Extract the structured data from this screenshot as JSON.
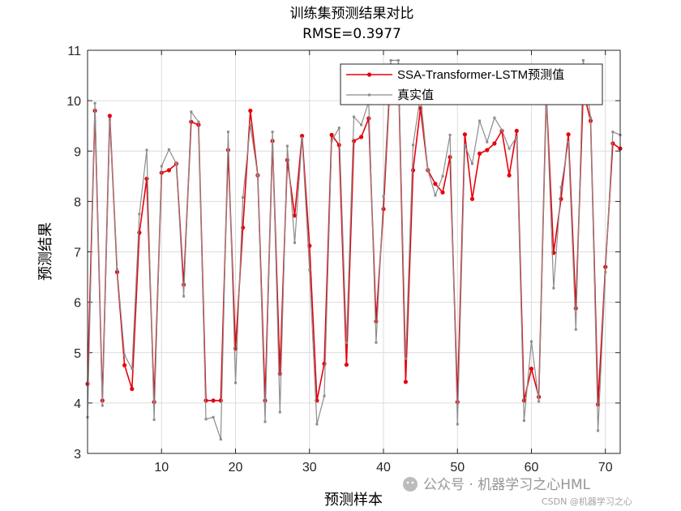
{
  "chart_data": {
    "type": "line",
    "title": "训练集预测结果对比",
    "subtitle": "RMSE=0.3977",
    "xlabel": "预测样本",
    "ylabel": "预测结果",
    "xlim": [
      0,
      72
    ],
    "ylim": [
      3,
      11
    ],
    "xticks": [
      10,
      20,
      30,
      40,
      50,
      60,
      70
    ],
    "yticks": [
      3,
      4,
      5,
      6,
      7,
      8,
      9,
      10,
      11
    ],
    "grid": true,
    "legend_position": "top-right",
    "x": [
      0,
      1,
      2,
      3,
      4,
      5,
      6,
      7,
      8,
      9,
      10,
      11,
      12,
      13,
      14,
      15,
      16,
      17,
      18,
      19,
      20,
      21,
      22,
      23,
      24,
      25,
      26,
      27,
      28,
      29,
      30,
      31,
      32,
      33,
      34,
      35,
      36,
      37,
      38,
      39,
      40,
      41,
      42,
      43,
      44,
      45,
      46,
      47,
      48,
      49,
      50,
      51,
      52,
      53,
      54,
      55,
      56,
      57,
      58,
      59,
      60,
      61,
      62,
      63,
      64,
      65,
      66,
      67,
      68,
      69,
      70,
      71,
      72
    ],
    "series": [
      {
        "name": "SSA-Transformer-LSTM预测值",
        "color": "#e8000b",
        "marker": "circle",
        "values": [
          4.38,
          9.8,
          4.05,
          9.7,
          6.6,
          4.75,
          4.28,
          7.38,
          8.45,
          4.02,
          8.57,
          8.62,
          8.75,
          6.35,
          9.58,
          9.52,
          4.05,
          4.05,
          4.05,
          9.02,
          5.08,
          7.48,
          9.8,
          8.52,
          4.05,
          9.2,
          4.58,
          8.82,
          7.72,
          9.3,
          7.12,
          4.05,
          4.78,
          9.32,
          9.12,
          4.76,
          9.2,
          9.28,
          9.65,
          5.62,
          7.85,
          10.7,
          10.7,
          4.42,
          8.62,
          9.85,
          8.62,
          8.35,
          8.18,
          8.88,
          4.02,
          9.33,
          8.05,
          8.95,
          9.02,
          9.15,
          9.4,
          8.52,
          9.4,
          4.05,
          4.68,
          4.12,
          10.1,
          6.98,
          8.05,
          9.33,
          5.88,
          10.2,
          9.6,
          3.97,
          6.7,
          9.15,
          9.05
        ]
      },
      {
        "name": "真实值",
        "color": "#8c8c8c",
        "marker": "point",
        "values": [
          3.72,
          9.95,
          3.95,
          9.62,
          6.65,
          4.95,
          4.68,
          7.75,
          9.02,
          3.67,
          8.7,
          9.03,
          8.75,
          6.12,
          9.78,
          9.58,
          3.68,
          3.72,
          3.28,
          9.38,
          4.4,
          8.08,
          9.52,
          8.52,
          3.63,
          9.38,
          3.82,
          9.1,
          7.18,
          9.26,
          6.64,
          3.58,
          4.14,
          9.2,
          9.46,
          5.2,
          9.68,
          9.52,
          9.98,
          5.2,
          8.1,
          10.8,
          10.8,
          4.88,
          9.12,
          10.1,
          8.62,
          8.12,
          8.5,
          9.32,
          3.58,
          9.12,
          8.75,
          9.6,
          9.18,
          9.66,
          9.42,
          9.05,
          9.28,
          3.65,
          5.22,
          4.03,
          10.1,
          6.28,
          8.28,
          9.18,
          5.46,
          10.8,
          9.66,
          3.45,
          6.6,
          9.38,
          9.32
        ]
      }
    ]
  },
  "watermark": {
    "main": "公众号 · 机器学习之心HML",
    "small": "CSDN @机器学习之心"
  }
}
